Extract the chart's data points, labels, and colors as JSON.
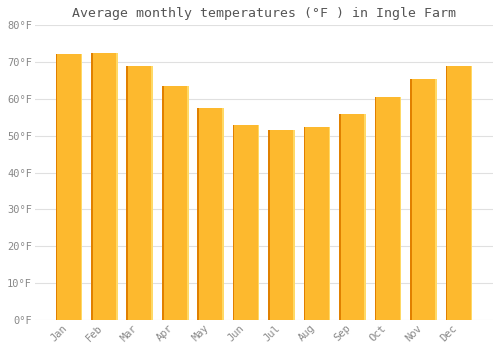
{
  "title": "Average monthly temperatures (°F ) in Ingle Farm",
  "months": [
    "Jan",
    "Feb",
    "Mar",
    "Apr",
    "May",
    "Jun",
    "Jul",
    "Aug",
    "Sep",
    "Oct",
    "Nov",
    "Dec"
  ],
  "values": [
    72.2,
    72.5,
    69.0,
    63.5,
    57.5,
    53.0,
    51.5,
    52.5,
    56.0,
    60.5,
    65.5,
    69.0
  ],
  "bar_color_main": "#FDB92E",
  "bar_color_left_edge": "#E08000",
  "bar_color_right_edge": "#FFD966",
  "background_color": "#FFFFFF",
  "plot_bg_color": "#FFFFFF",
  "grid_color": "#E0E0E0",
  "tick_label_color": "#888888",
  "title_color": "#555555",
  "ylim": [
    0,
    80
  ],
  "yticks": [
    0,
    10,
    20,
    30,
    40,
    50,
    60,
    70,
    80
  ],
  "ytick_labels": [
    "0°F",
    "10°F",
    "20°F",
    "30°F",
    "40°F",
    "50°F",
    "60°F",
    "70°F",
    "80°F"
  ]
}
